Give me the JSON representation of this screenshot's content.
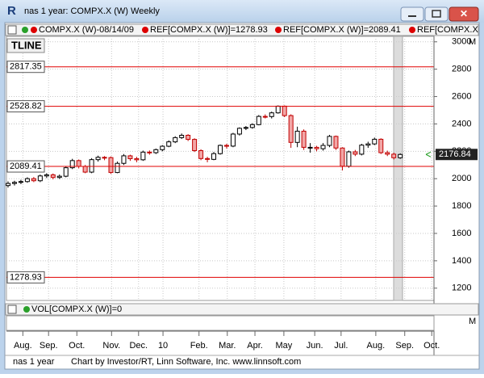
{
  "window": {
    "title": "nas 1 year: COMPX.X (W) Weekly"
  },
  "legend": {
    "symbol": "COMPX.X (W)-08/14/09",
    "ref1": "REF[COMPX.X (W)]=1278.93",
    "ref2": "REF[COMPX.X (W)]=2089.41",
    "ref3": "REF[COMPX.X (W"
  },
  "tline": "TLINE",
  "volume_legend": "VOL[COMPX.X (W)]=0",
  "pane_marker": "M",
  "footer": {
    "name": "nas 1 year",
    "credit": "Chart by Investor/RT, Linn Software, Inc. www.linnsoft.com"
  },
  "chart_data": {
    "type": "candlestick",
    "series": {
      "open": [
        1950,
        1965,
        1973,
        1979,
        2000,
        1985,
        2020,
        2028,
        2009,
        2018,
        2080,
        2132,
        2090,
        2048,
        2139,
        2156,
        2154,
        2045,
        2112,
        2167,
        2146,
        2138,
        2194,
        2190,
        2212,
        2237,
        2269,
        2300,
        2317,
        2287,
        2205,
        2147,
        2141,
        2183,
        2243,
        2238,
        2326,
        2368,
        2374,
        2395,
        2455,
        2454,
        2481,
        2530,
        2461,
        2265,
        2347,
        2229,
        2229,
        2219,
        2243,
        2309,
        2224,
        2091,
        2196,
        2179,
        2245,
        2254,
        2288,
        2190,
        2179,
        2153
      ],
      "high": [
        1980,
        1985,
        1992,
        2010,
        2012,
        2030,
        2040,
        2038,
        2030,
        2092,
        2145,
        2140,
        2100,
        2150,
        2168,
        2165,
        2162,
        2125,
        2180,
        2175,
        2160,
        2205,
        2206,
        2220,
        2245,
        2280,
        2310,
        2330,
        2325,
        2295,
        2215,
        2160,
        2195,
        2250,
        2255,
        2335,
        2375,
        2385,
        2405,
        2465,
        2470,
        2490,
        2535,
        2535,
        2470,
        2380,
        2360,
        2260,
        2240,
        2260,
        2320,
        2315,
        2230,
        2205,
        2210,
        2255,
        2270,
        2300,
        2295,
        2205,
        2190,
        2185
      ],
      "low": [
        1935,
        1950,
        1960,
        1970,
        1975,
        1975,
        2005,
        1995,
        1998,
        2010,
        2070,
        2075,
        2040,
        2040,
        2125,
        2135,
        2035,
        2040,
        2100,
        2130,
        2120,
        2130,
        2175,
        2180,
        2200,
        2230,
        2260,
        2290,
        2275,
        2195,
        2135,
        2120,
        2135,
        2175,
        2220,
        2230,
        2315,
        2355,
        2365,
        2390,
        2440,
        2440,
        2475,
        2450,
        2225,
        2230,
        2210,
        2190,
        2200,
        2205,
        2230,
        2210,
        2060,
        2080,
        2165,
        2170,
        2225,
        2245,
        2180,
        2165,
        2140,
        2145
      ],
      "close": [
        1965,
        1973,
        1979,
        2000,
        1985,
        2020,
        2028,
        2009,
        2018,
        2080,
        2132,
        2090,
        2048,
        2139,
        2156,
        2154,
        2045,
        2112,
        2167,
        2146,
        2138,
        2194,
        2190,
        2212,
        2237,
        2269,
        2300,
        2317,
        2287,
        2205,
        2147,
        2141,
        2183,
        2243,
        2238,
        2326,
        2368,
        2374,
        2395,
        2455,
        2454,
        2481,
        2530,
        2461,
        2265,
        2347,
        2229,
        2229,
        2219,
        2243,
        2309,
        2224,
        2091,
        2196,
        2179,
        2245,
        2254,
        2288,
        2190,
        2179,
        2153,
        2176.84
      ]
    },
    "up_color": "#ffffff",
    "down_color": "#f2a6a6",
    "down_edge": "#c00000",
    "last_price": 2176.84,
    "ref_lines": [
      2817.35,
      2528.82,
      2089.41,
      1278.93
    ],
    "ref_color": "#e00000",
    "ylim": [
      1110,
      3040
    ],
    "yticks": [
      1200,
      1400,
      1600,
      1800,
      2000,
      2200,
      2400,
      2600,
      2800,
      3000
    ],
    "xlim": [
      -0.25,
      66.25
    ],
    "xticks": [
      {
        "value": 2.3,
        "label": "Aug."
      },
      {
        "value": 6.3,
        "label": "Sep."
      },
      {
        "value": 10.7,
        "label": "Oct."
      },
      {
        "value": 16.1,
        "label": "Nov."
      },
      {
        "value": 20.3,
        "label": "Dec."
      },
      {
        "value": 24.1,
        "label": "10"
      },
      {
        "value": 29.7,
        "label": "Feb."
      },
      {
        "value": 34.1,
        "label": "Mar."
      },
      {
        "value": 38.4,
        "label": "Apr."
      },
      {
        "value": 42.9,
        "label": "May"
      },
      {
        "value": 47.7,
        "label": "Jun."
      },
      {
        "value": 51.8,
        "label": "Jul."
      },
      {
        "value": 57.2,
        "label": "Aug."
      },
      {
        "value": 61.7,
        "label": "Sep."
      },
      {
        "value": 65.9,
        "label": "Oct."
      }
    ],
    "grid": true
  }
}
